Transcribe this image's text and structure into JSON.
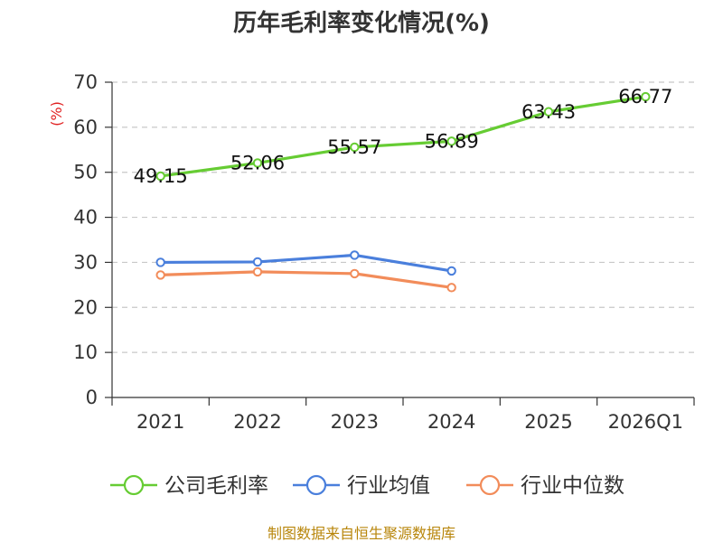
{
  "chart_data": {
    "type": "line",
    "title": "历年毛利率变化情况(%)",
    "ylabel": "(%)",
    "categories": [
      "2021",
      "2022",
      "2023",
      "2024",
      "2025",
      "2026Q1"
    ],
    "ylim": [
      0,
      70
    ],
    "yticks": [
      0,
      10,
      20,
      30,
      40,
      50,
      60,
      70
    ],
    "grid": "horizontal dashed",
    "legend_position": "bottom",
    "series": [
      {
        "name": "公司毛利率",
        "color": "#66cc33",
        "values": [
          49.15,
          52.06,
          55.57,
          56.89,
          63.43,
          66.77
        ],
        "data_labels": [
          "49.15",
          "52.06",
          "55.57",
          "56.89",
          "63.43",
          "66.77"
        ]
      },
      {
        "name": "行业均值",
        "color": "#4a7fdc",
        "values": [
          30.0,
          30.1,
          31.6,
          28.1,
          null,
          null
        ]
      },
      {
        "name": "行业中位数",
        "color": "#f28c5a",
        "values": [
          27.2,
          27.9,
          27.5,
          24.4,
          null,
          null
        ]
      }
    ]
  },
  "source_text": "制图数据来自恒生聚源数据库"
}
